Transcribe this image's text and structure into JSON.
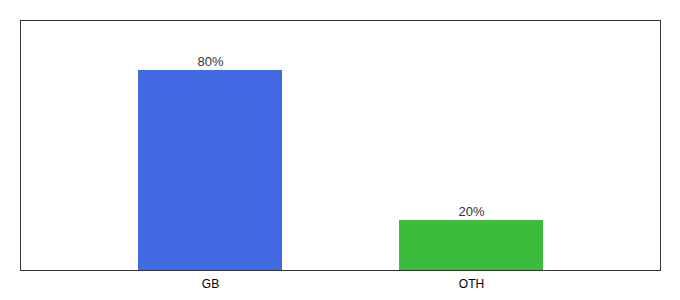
{
  "chart_data": {
    "type": "bar",
    "categories": [
      "GB",
      "OTH"
    ],
    "values": [
      80,
      20
    ],
    "colors": [
      "#4169e1",
      "#3dbb3d"
    ],
    "value_labels": [
      "80%",
      "20%"
    ],
    "data_labels": true,
    "ylim": [
      0,
      100
    ],
    "tick_labels": "x",
    "grid": false
  }
}
